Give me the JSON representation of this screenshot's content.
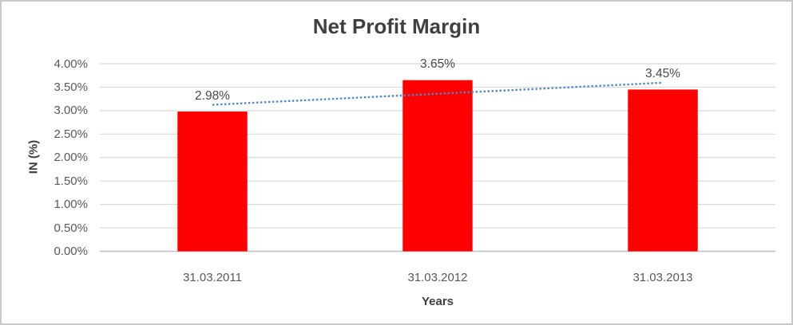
{
  "chart_data": {
    "type": "bar",
    "title": "Net Profit Margin",
    "xlabel": "Years",
    "ylabel": "IN (%)",
    "categories": [
      "31.03.2011",
      "31.03.2012",
      "31.03.2013"
    ],
    "values": [
      2.98,
      3.65,
      3.45
    ],
    "data_labels": [
      "2.98%",
      "3.65%",
      "3.45%"
    ],
    "ylim": [
      0,
      4
    ],
    "ytick_step": 0.5,
    "ytick_labels": [
      "0.00%",
      "0.50%",
      "1.00%",
      "1.50%",
      "2.00%",
      "2.50%",
      "3.00%",
      "3.50%",
      "4.00%"
    ],
    "grid": "horizontal",
    "legend": "none",
    "bar_color": "#FF0000",
    "trendline": {
      "type": "linear",
      "style": "dotted",
      "color": "#4E87C8"
    },
    "colors": {
      "gridline": "#D9D9D9",
      "axis_line": "#BFBFBF",
      "title_text": "#3F3F3F",
      "tick_text": "#595959",
      "frame_border": "#C9C7C7"
    }
  }
}
